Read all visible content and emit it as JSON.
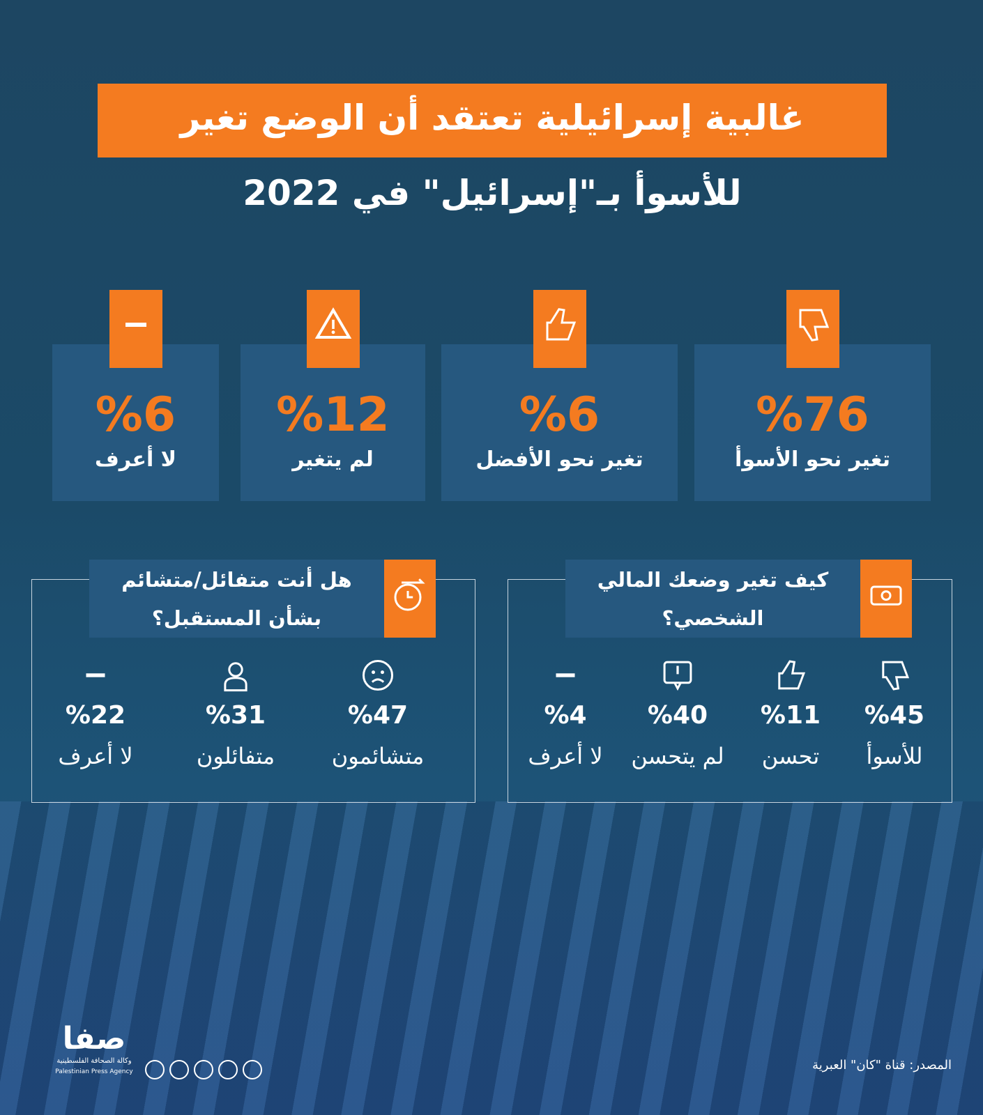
{
  "title": {
    "line1": "غالبية إسرائيلية تعتقد أن الوضع تغير",
    "line2": "للأسوأ بـ\"إسرائيل\" في 2022"
  },
  "cards": [
    {
      "value": "%76",
      "label": "تغير نحو الأسوأ"
    },
    {
      "value": "%6",
      "label": "تغير نحو الأفضل"
    },
    {
      "value": "%12",
      "label": "لم يتغير"
    },
    {
      "value": "%6",
      "label": "لا أعرف"
    }
  ],
  "panels": [
    {
      "title": [
        "كيف تغير وضعك المالي",
        "الشخصي؟"
      ],
      "items": [
        {
          "value": "%45",
          "label": "للأسوأ"
        },
        {
          "value": "%11",
          "label": "تحسن"
        },
        {
          "value": "%40",
          "label": "لم يتحسن"
        },
        {
          "value": "%4",
          "label": "لا أعرف"
        }
      ]
    },
    {
      "title": [
        "هل أنت متفائل/متشائم",
        "بشأن المستقبل؟"
      ],
      "items": [
        {
          "value": "%47",
          "label": "متشائمون"
        },
        {
          "value": "%31",
          "label": "متفائلون"
        },
        {
          "value": "%22",
          "label": "لا أعرف"
        }
      ]
    }
  ],
  "source": "المصدر: قناة \"كان\" العبرية",
  "logo": {
    "name": "صفا",
    "subtitle": "وكالة الصحافة الفلسطينية",
    "english": "Palestinian Press Agency"
  }
}
